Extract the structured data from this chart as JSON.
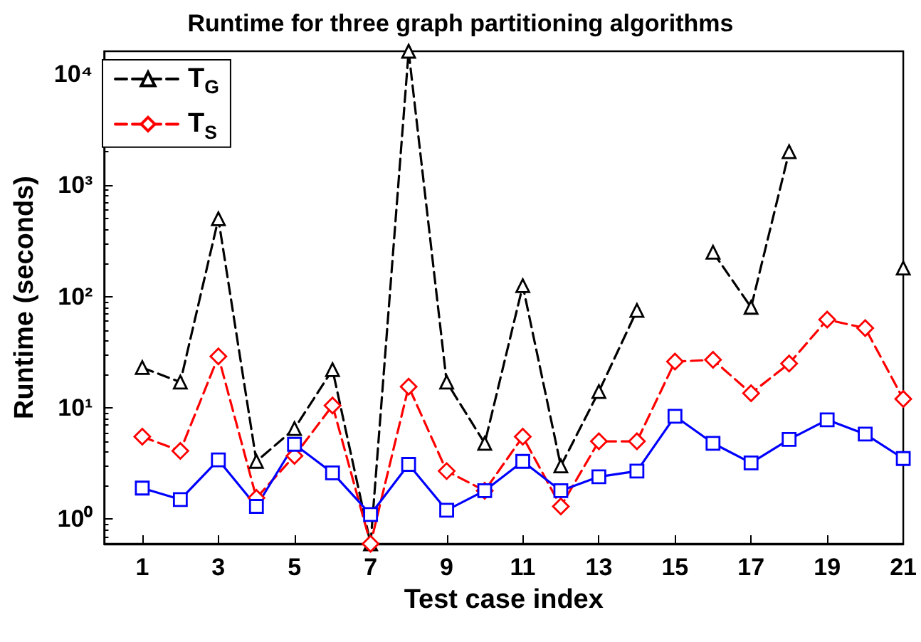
{
  "chart_data": {
    "type": "line",
    "title": "Runtime for three graph partitioning algorithms",
    "xlabel": "Test case index",
    "ylabel": "Runtime (seconds)",
    "x": [
      1,
      2,
      3,
      4,
      5,
      6,
      7,
      8,
      9,
      10,
      11,
      12,
      13,
      14,
      15,
      16,
      17,
      18,
      19,
      20,
      21
    ],
    "series": [
      {
        "name": "T$_{G}$",
        "color": "#000000",
        "marker": "triangle",
        "line_style": "dashed",
        "values": [
          23,
          17,
          500,
          3.3,
          6.5,
          22,
          0.6,
          16000,
          17,
          4.8,
          125,
          3,
          14,
          75,
          null,
          250,
          80,
          2000,
          null,
          null,
          180
        ]
      },
      {
        "name": "T$_{S}$",
        "color": "#ff0000",
        "marker": "diamond",
        "line_style": "dashed",
        "values": [
          5.5,
          4.1,
          29,
          1.55,
          3.7,
          10.5,
          0.6,
          15.5,
          2.7,
          1.8,
          5.5,
          1.3,
          5,
          5,
          26,
          27,
          13.5,
          25,
          62,
          52,
          12
        ]
      },
      {
        "color": "#0000ff",
        "marker": "square",
        "line_style": "solid",
        "values": [
          1.9,
          1.5,
          3.4,
          1.3,
          4.7,
          2.6,
          1.1,
          3.1,
          1.2,
          1.8,
          3.3,
          1.8,
          2.4,
          2.7,
          8.4,
          4.8,
          3.2,
          5.2,
          7.8,
          5.8,
          3.5
        ]
      }
    ],
    "log": "y",
    "xlim": [
      0,
      21
    ],
    "xticks": [
      1,
      3,
      5,
      7,
      9,
      11,
      13,
      15,
      17,
      19,
      21
    ],
    "ylim": [
      0.6,
      16000
    ],
    "yticks": [
      {
        "value": 1,
        "label": "10⁰"
      },
      {
        "value": 10,
        "label": "10¹"
      },
      {
        "value": 100,
        "label": "10²"
      },
      {
        "value": 1000,
        "label": "10³"
      },
      {
        "value": 10000,
        "label": "10⁴"
      }
    ],
    "grid": false,
    "legend": "top left"
  }
}
